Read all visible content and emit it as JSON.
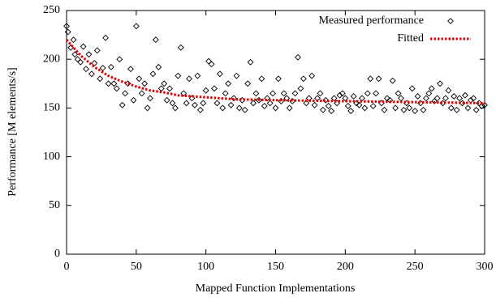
{
  "chart_data": {
    "type": "scatter",
    "xlabel": "Mapped Function Implementations",
    "ylabel": "Performance [M elements/s]",
    "xlim": [
      0,
      300
    ],
    "xticks": [
      0,
      50,
      100,
      150,
      200,
      250,
      300
    ],
    "ylim": [
      0,
      250
    ],
    "yticks": [
      0,
      50,
      100,
      150,
      200,
      250
    ],
    "legend": "top-right",
    "series": [
      {
        "name": "Measured performance",
        "kind": "points",
        "marker": "diamond",
        "color": "#000000",
        "x": [
          0,
          1,
          3,
          5,
          6,
          8,
          10,
          12,
          14,
          16,
          18,
          20,
          22,
          24,
          26,
          28,
          30,
          32,
          34,
          36,
          38,
          40,
          42,
          44,
          46,
          48,
          50,
          52,
          54,
          56,
          58,
          60,
          62,
          64,
          66,
          68,
          70,
          72,
          74,
          76,
          78,
          80,
          82,
          84,
          86,
          88,
          90,
          92,
          94,
          96,
          98,
          100,
          102,
          104,
          106,
          108,
          110,
          112,
          114,
          116,
          118,
          120,
          122,
          124,
          126,
          128,
          130,
          132,
          134,
          136,
          138,
          140,
          142,
          144,
          146,
          148,
          150,
          152,
          154,
          156,
          158,
          160,
          162,
          164,
          166,
          168,
          170,
          172,
          174,
          176,
          178,
          180,
          182,
          184,
          186,
          188,
          190,
          192,
          194,
          196,
          198,
          200,
          202,
          204,
          206,
          208,
          210,
          212,
          214,
          216,
          218,
          220,
          222,
          224,
          226,
          228,
          230,
          232,
          234,
          236,
          238,
          240,
          242,
          244,
          246,
          248,
          250,
          252,
          254,
          256,
          258,
          260,
          262,
          264,
          266,
          268,
          270,
          272,
          274,
          276,
          278,
          280,
          282,
          284,
          286,
          288,
          290,
          292,
          294,
          296,
          298,
          300
        ],
        "values": [
          234,
          228,
          212,
          220,
          205,
          200,
          197,
          213,
          190,
          205,
          185,
          196,
          209,
          180,
          191,
          222,
          175,
          192,
          175,
          170,
          200,
          153,
          165,
          175,
          190,
          158,
          234,
          180,
          165,
          175,
          150,
          160,
          185,
          220,
          192,
          170,
          175,
          158,
          170,
          155,
          150,
          183,
          212,
          165,
          155,
          180,
          160,
          153,
          183,
          148,
          155,
          168,
          198,
          195,
          170,
          155,
          185,
          150,
          165,
          175,
          153,
          160,
          183,
          150,
          158,
          148,
          175,
          197,
          155,
          165,
          158,
          180,
          152,
          160,
          155,
          165,
          150,
          180,
          157,
          165,
          160,
          150,
          157,
          165,
          202,
          170,
          180,
          155,
          160,
          183,
          153,
          160,
          165,
          148,
          158,
          152,
          147,
          160,
          155,
          163,
          165,
          160,
          152,
          147,
          162,
          155,
          153,
          160,
          150,
          165,
          180,
          152,
          165,
          180,
          155,
          148,
          160,
          158,
          178,
          150,
          165,
          160,
          148,
          155,
          150,
          170,
          147,
          162,
          155,
          148,
          160,
          165,
          170,
          157,
          160,
          175,
          155,
          160,
          168,
          150,
          162,
          148,
          160,
          155,
          163,
          150,
          158,
          160,
          148,
          155,
          152,
          153
        ]
      },
      {
        "name": "Fitted",
        "kind": "line",
        "style": "dotted",
        "color": "#e00000",
        "x": [
          0,
          10,
          20,
          30,
          40,
          50,
          60,
          70,
          80,
          100,
          120,
          150,
          200,
          250,
          300
        ],
        "values": [
          220,
          204,
          192,
          183,
          177,
          172,
          168,
          166,
          163,
          161,
          159,
          158,
          157,
          156,
          155
        ]
      }
    ]
  }
}
